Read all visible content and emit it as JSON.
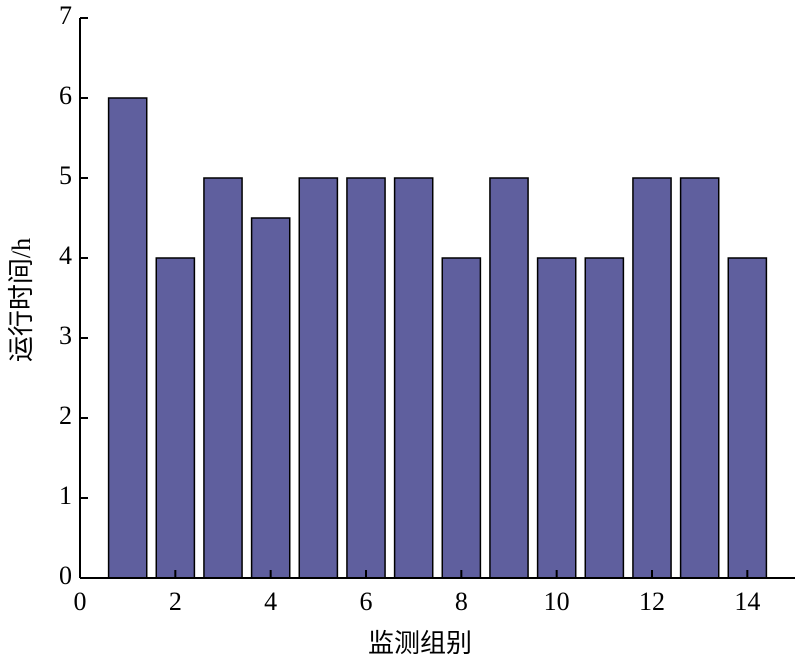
{
  "chart_data": {
    "type": "bar",
    "x_label": "监测组别",
    "y_label": "运行时间/h",
    "x": [
      1,
      2,
      3,
      4,
      5,
      6,
      7,
      8,
      9,
      10,
      11,
      12,
      13,
      14
    ],
    "values": [
      6,
      4,
      5,
      4.5,
      5,
      5,
      5,
      4,
      5,
      4,
      4,
      5,
      5,
      4
    ],
    "color": "#5f5f9e",
    "xlim": [
      0,
      15
    ],
    "xticks": [
      0,
      2,
      4,
      6,
      8,
      10,
      12,
      14
    ],
    "ylim": [
      0,
      7
    ],
    "yticks": [
      0,
      1,
      2,
      3,
      4,
      5,
      6,
      7
    ]
  }
}
